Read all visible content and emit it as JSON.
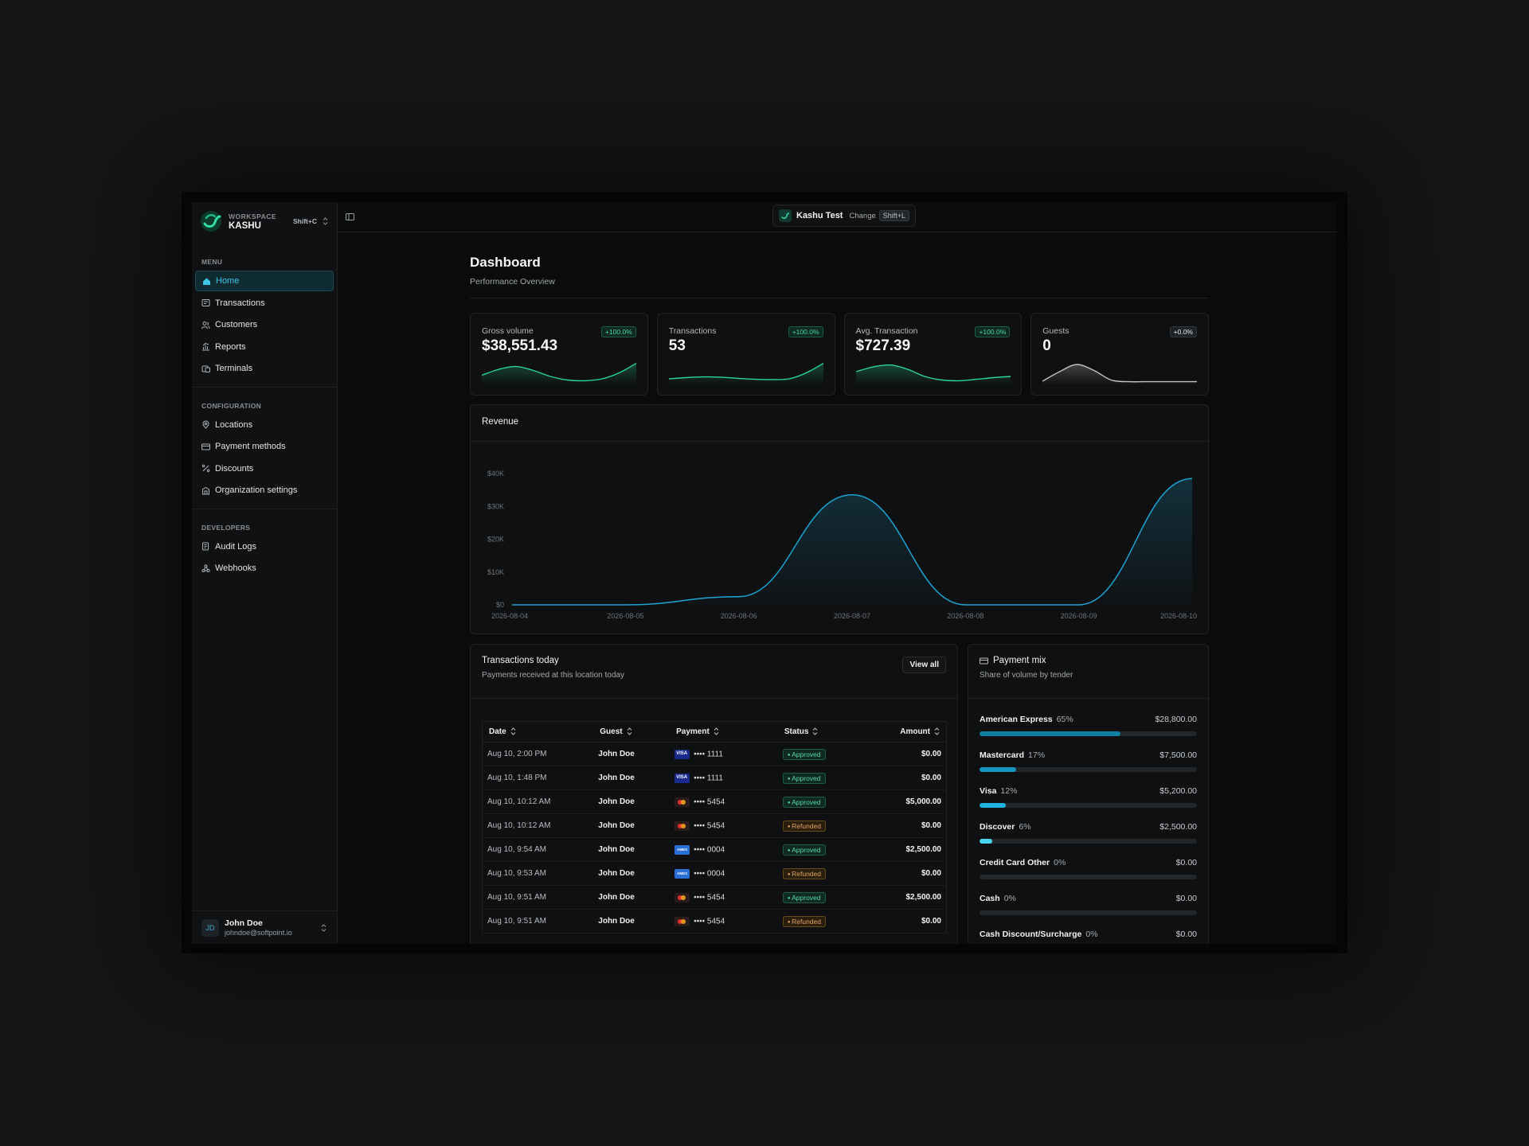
{
  "workspace": {
    "caption": "WORKSPACE",
    "name": "KASHU",
    "shortcut": "Shift+C"
  },
  "sidebar": {
    "menu_title": "MENU",
    "menu": [
      {
        "label": "Home",
        "icon": "home-icon",
        "active": true
      },
      {
        "label": "Transactions",
        "icon": "receipt-icon"
      },
      {
        "label": "Customers",
        "icon": "users-icon"
      },
      {
        "label": "Reports",
        "icon": "chart-icon"
      },
      {
        "label": "Terminals",
        "icon": "terminal-icon"
      }
    ],
    "config_title": "CONFIGURATION",
    "config": [
      {
        "label": "Locations",
        "icon": "map-pin-icon"
      },
      {
        "label": "Payment methods",
        "icon": "credit-card-icon"
      },
      {
        "label": "Discounts",
        "icon": "percent-icon"
      },
      {
        "label": "Organization settings",
        "icon": "building-icon"
      }
    ],
    "dev_title": "DEVELOPERS",
    "dev": [
      {
        "label": "Audit Logs",
        "icon": "log-icon"
      },
      {
        "label": "Webhooks",
        "icon": "webhook-icon"
      }
    ]
  },
  "user": {
    "initials": "JD",
    "name": "John Doe",
    "email": "johndoe@softpoint.io"
  },
  "topbar": {
    "location": "Kashu Test",
    "change_label": "Change",
    "shortcut": "Shift+L"
  },
  "page": {
    "title": "Dashboard",
    "subtitle": "Performance Overview"
  },
  "stats": [
    {
      "label": "Gross volume",
      "value": "$38,551.43",
      "change": "+100.0%",
      "trend": [
        0.35,
        0.6,
        0.72,
        0.55,
        0.3,
        0.15,
        0.12,
        0.2,
        0.45,
        0.85
      ],
      "color": "#2ad69a"
    },
    {
      "label": "Transactions",
      "value": "53",
      "change": "+100.0%",
      "trend": [
        0.2,
        0.25,
        0.28,
        0.27,
        0.22,
        0.18,
        0.17,
        0.2,
        0.45,
        0.85
      ],
      "color": "#2ad69a"
    },
    {
      "label": "Avg. Transaction",
      "value": "$727.39",
      "change": "+100.0%",
      "trend": [
        0.5,
        0.7,
        0.78,
        0.6,
        0.3,
        0.15,
        0.12,
        0.18,
        0.25,
        0.3
      ],
      "color": "#2ad69a"
    },
    {
      "label": "Guests",
      "value": "0",
      "change": "+0.0%",
      "trend": [
        0.1,
        0.5,
        0.8,
        0.55,
        0.15,
        0.08,
        0.08,
        0.08,
        0.08,
        0.08
      ],
      "color": "#bfc3c6",
      "neutral": true
    }
  ],
  "revenue": {
    "title": "Revenue",
    "chart_data": {
      "type": "area",
      "x": [
        "2026-08-04",
        "2026-08-05",
        "2026-08-06",
        "2026-08-07",
        "2026-08-08",
        "2026-08-09",
        "2026-08-10"
      ],
      "values": [
        0,
        0,
        2500,
        33500,
        0,
        0,
        38500
      ],
      "ylim": [
        0,
        40000
      ],
      "yticks": [
        "$0",
        "$10K",
        "$20K",
        "$30K",
        "$40K"
      ],
      "color": "#1ca3d4"
    }
  },
  "transactions": {
    "title": "Transactions today",
    "subtitle": "Payments received at this location today",
    "view_all": "View all",
    "columns": [
      "Date",
      "Guest",
      "Payment",
      "Status",
      "Amount"
    ],
    "rows": [
      {
        "date": "Aug 10, 2:00 PM",
        "guest": "John Doe",
        "card": "visa",
        "last4": "•••• 1111",
        "status": "Approved",
        "amount": "$0.00"
      },
      {
        "date": "Aug 10, 1:48 PM",
        "guest": "John Doe",
        "card": "visa",
        "last4": "•••• 1111",
        "status": "Approved",
        "amount": "$0.00"
      },
      {
        "date": "Aug 10, 10:12 AM",
        "guest": "John Doe",
        "card": "mc",
        "last4": "•••• 5454",
        "status": "Approved",
        "amount": "$5,000.00"
      },
      {
        "date": "Aug 10, 10:12 AM",
        "guest": "John Doe",
        "card": "mc",
        "last4": "•••• 5454",
        "status": "Refunded",
        "amount": "$0.00"
      },
      {
        "date": "Aug 10, 9:54 AM",
        "guest": "John Doe",
        "card": "amex",
        "last4": "•••• 0004",
        "status": "Approved",
        "amount": "$2,500.00"
      },
      {
        "date": "Aug 10, 9:53 AM",
        "guest": "John Doe",
        "card": "amex",
        "last4": "•••• 0004",
        "status": "Refunded",
        "amount": "$0.00"
      },
      {
        "date": "Aug 10, 9:51 AM",
        "guest": "John Doe",
        "card": "mc",
        "last4": "•••• 5454",
        "status": "Approved",
        "amount": "$2,500.00"
      },
      {
        "date": "Aug 10, 9:51 AM",
        "guest": "John Doe",
        "card": "mc",
        "last4": "•••• 5454",
        "status": "Refunded",
        "amount": "$0.00"
      }
    ]
  },
  "payment_mix": {
    "title": "Payment mix",
    "subtitle": "Share of volume by tender",
    "items": [
      {
        "name": "American Express",
        "pct": "65%",
        "amount": "$28,800.00",
        "share": 0.65,
        "color": "#0f7fa3"
      },
      {
        "name": "Mastercard",
        "pct": "17%",
        "amount": "$7,500.00",
        "share": 0.17,
        "color": "#1596bf"
      },
      {
        "name": "Visa",
        "pct": "12%",
        "amount": "$5,200.00",
        "share": 0.12,
        "color": "#1fb4e0"
      },
      {
        "name": "Discover",
        "pct": "6%",
        "amount": "$2,500.00",
        "share": 0.06,
        "color": "#4cd6ee"
      },
      {
        "name": "Credit Card Other",
        "pct": "0%",
        "amount": "$0.00",
        "share": 0,
        "color": "#4cd6ee"
      },
      {
        "name": "Cash",
        "pct": "0%",
        "amount": "$0.00",
        "share": 0,
        "color": "#4cd6ee"
      },
      {
        "name": "Cash Discount/Surcharge",
        "pct": "0%",
        "amount": "$0.00",
        "share": 0,
        "color": "#4cd6ee"
      }
    ]
  }
}
